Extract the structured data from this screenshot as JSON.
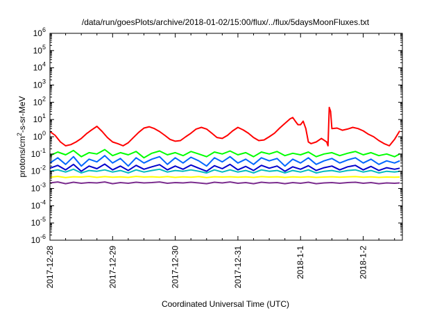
{
  "chart_data": {
    "type": "line",
    "title": "/data/run/goesPlots/archive/2018-01-02/15:00/flux/../flux/5daysMoonFluxes.txt",
    "xlabel": "Coordinated Universal Time (UTC)",
    "ylabel": {
      "pre": "protons/cm",
      "sup": "2",
      "post": "-s-sr-MeV"
    },
    "x_unit": "hours from first tick (2017-12-28 00:00 UTC)",
    "xlim": [
      0,
      135
    ],
    "ylim": [
      1e-06,
      1000000.0
    ],
    "yscale": "log",
    "grid": false,
    "legend": "none",
    "x_ticks": [
      {
        "hour": 0,
        "label": "2017-12-28"
      },
      {
        "hour": 24,
        "label": "2017-12-29"
      },
      {
        "hour": 48,
        "label": "2017-12-30"
      },
      {
        "hour": 72,
        "label": "2017-12-31"
      },
      {
        "hour": 96,
        "label": "2018-1-1"
      },
      {
        "hour": 120,
        "label": "2018-1-2"
      }
    ],
    "y_ticks": [
      {
        "value": 1e-06,
        "base": "10",
        "exp": "-6"
      },
      {
        "value": 1e-05,
        "base": "10",
        "exp": "-5"
      },
      {
        "value": 0.0001,
        "base": "10",
        "exp": "-4"
      },
      {
        "value": 0.001,
        "base": "10",
        "exp": "-3"
      },
      {
        "value": 0.01,
        "base": "10",
        "exp": "-2"
      },
      {
        "value": 0.1,
        "base": "10",
        "exp": "-1"
      },
      {
        "value": 1,
        "base": "10",
        "exp": "0"
      },
      {
        "value": 10,
        "base": "10",
        "exp": "1"
      },
      {
        "value": 100,
        "base": "10",
        "exp": "2"
      },
      {
        "value": 1000,
        "base": "10",
        "exp": "3"
      },
      {
        "value": 10000,
        "base": "10",
        "exp": "4"
      },
      {
        "value": 100000,
        "base": "10",
        "exp": "5"
      },
      {
        "value": 1000000,
        "base": "10",
        "exp": "6"
      }
    ],
    "series": [
      {
        "color": "#ff0000",
        "x": [
          0,
          2,
          4,
          6,
          8,
          10,
          12,
          14,
          16,
          18,
          20,
          22,
          24,
          26,
          28,
          30,
          32,
          34,
          36,
          38,
          40,
          42,
          44,
          46,
          48,
          50,
          52,
          54,
          56,
          58,
          60,
          62,
          64,
          66,
          68,
          70,
          72,
          74,
          76,
          78,
          80,
          82,
          84,
          86,
          88,
          90,
          92,
          93,
          94,
          95,
          96,
          97,
          98,
          99,
          100,
          102,
          104,
          106,
          106.5,
          107,
          107.5,
          108,
          110,
          112,
          114,
          116,
          118,
          120,
          122,
          124,
          126,
          128,
          130,
          132,
          134
        ],
        "y": [
          2.0,
          1.2,
          0.5,
          0.3,
          0.35,
          0.5,
          0.8,
          1.5,
          2.5,
          4.0,
          2.0,
          0.9,
          0.5,
          0.4,
          0.3,
          0.45,
          0.9,
          1.8,
          3.2,
          3.8,
          3.0,
          2.0,
          1.2,
          0.7,
          0.55,
          0.6,
          1.0,
          1.6,
          2.8,
          3.5,
          2.8,
          1.6,
          0.9,
          0.8,
          1.2,
          2.2,
          3.5,
          2.5,
          1.6,
          0.9,
          0.6,
          0.65,
          1.0,
          1.6,
          3.2,
          6.0,
          11,
          13,
          8,
          5,
          5,
          8,
          3,
          0.5,
          0.4,
          0.5,
          0.8,
          0.5,
          0.3,
          50,
          30,
          3.0,
          3.2,
          2.4,
          2.8,
          3.5,
          3.0,
          2.2,
          1.4,
          1.0,
          0.6,
          0.4,
          0.3,
          0.7,
          2.2
        ]
      },
      {
        "color": "#00ff00",
        "x": [
          0,
          3,
          6,
          9,
          12,
          15,
          18,
          21,
          24,
          27,
          30,
          33,
          36,
          39,
          42,
          45,
          48,
          51,
          54,
          57,
          60,
          63,
          66,
          69,
          72,
          75,
          78,
          81,
          84,
          87,
          90,
          93,
          96,
          99,
          102,
          105,
          108,
          111,
          114,
          117,
          120,
          123,
          126,
          129,
          132,
          134
        ],
        "y": [
          0.08,
          0.13,
          0.09,
          0.16,
          0.07,
          0.12,
          0.1,
          0.18,
          0.08,
          0.12,
          0.09,
          0.14,
          0.06,
          0.11,
          0.15,
          0.09,
          0.12,
          0.08,
          0.14,
          0.1,
          0.07,
          0.13,
          0.1,
          0.15,
          0.09,
          0.12,
          0.07,
          0.13,
          0.1,
          0.14,
          0.08,
          0.11,
          0.09,
          0.13,
          0.07,
          0.1,
          0.12,
          0.08,
          0.11,
          0.14,
          0.09,
          0.12,
          0.08,
          0.1,
          0.07,
          0.1
        ]
      },
      {
        "color": "#0066ff",
        "x": [
          0,
          3,
          6,
          9,
          12,
          15,
          18,
          21,
          24,
          27,
          30,
          33,
          36,
          39,
          42,
          45,
          48,
          51,
          54,
          57,
          60,
          63,
          66,
          69,
          72,
          75,
          78,
          81,
          84,
          87,
          90,
          93,
          96,
          99,
          102,
          105,
          108,
          111,
          114,
          117,
          120,
          123,
          126,
          129,
          132,
          134
        ],
        "y": [
          0.03,
          0.06,
          0.025,
          0.07,
          0.02,
          0.05,
          0.035,
          0.08,
          0.03,
          0.055,
          0.02,
          0.06,
          0.03,
          0.05,
          0.07,
          0.025,
          0.06,
          0.03,
          0.065,
          0.04,
          0.02,
          0.06,
          0.035,
          0.07,
          0.03,
          0.05,
          0.025,
          0.06,
          0.04,
          0.055,
          0.02,
          0.05,
          0.03,
          0.06,
          0.025,
          0.04,
          0.055,
          0.03,
          0.045,
          0.06,
          0.03,
          0.05,
          0.025,
          0.04,
          0.03,
          0.04
        ]
      },
      {
        "color": "#0000cc",
        "x": [
          0,
          3,
          6,
          9,
          12,
          15,
          18,
          21,
          24,
          27,
          30,
          33,
          36,
          39,
          42,
          45,
          48,
          51,
          54,
          57,
          60,
          63,
          66,
          69,
          72,
          75,
          78,
          81,
          84,
          87,
          90,
          93,
          96,
          99,
          102,
          105,
          108,
          111,
          114,
          117,
          120,
          123,
          126,
          129,
          132,
          134
        ],
        "y": [
          0.015,
          0.022,
          0.012,
          0.025,
          0.01,
          0.02,
          0.014,
          0.026,
          0.012,
          0.02,
          0.011,
          0.022,
          0.013,
          0.018,
          0.024,
          0.012,
          0.02,
          0.013,
          0.023,
          0.015,
          0.01,
          0.021,
          0.014,
          0.025,
          0.012,
          0.019,
          0.011,
          0.022,
          0.015,
          0.02,
          0.01,
          0.018,
          0.013,
          0.021,
          0.011,
          0.016,
          0.02,
          0.012,
          0.018,
          0.022,
          0.012,
          0.019,
          0.011,
          0.016,
          0.013,
          0.015
        ]
      },
      {
        "color": "#00bbbb",
        "x": [
          0,
          3,
          6,
          9,
          12,
          15,
          18,
          21,
          24,
          27,
          30,
          33,
          36,
          39,
          42,
          45,
          48,
          51,
          54,
          57,
          60,
          63,
          66,
          69,
          72,
          75,
          78,
          81,
          84,
          87,
          90,
          93,
          96,
          99,
          102,
          105,
          108,
          111,
          114,
          117,
          120,
          123,
          126,
          129,
          132,
          134
        ],
        "y": [
          0.01,
          0.012,
          0.009,
          0.013,
          0.008,
          0.011,
          0.01,
          0.012,
          0.009,
          0.011,
          0.008,
          0.012,
          0.009,
          0.011,
          0.013,
          0.009,
          0.011,
          0.01,
          0.012,
          0.01,
          0.008,
          0.012,
          0.009,
          0.012,
          0.009,
          0.011,
          0.008,
          0.012,
          0.01,
          0.011,
          0.008,
          0.011,
          0.009,
          0.012,
          0.008,
          0.01,
          0.011,
          0.009,
          0.011,
          0.012,
          0.009,
          0.011,
          0.008,
          0.01,
          0.009,
          0.01
        ]
      },
      {
        "color": "#ffff00",
        "x": [
          0,
          3,
          6,
          9,
          12,
          15,
          18,
          21,
          24,
          27,
          30,
          33,
          36,
          39,
          42,
          45,
          48,
          51,
          54,
          57,
          60,
          63,
          66,
          69,
          72,
          75,
          78,
          81,
          84,
          87,
          90,
          93,
          96,
          99,
          102,
          105,
          108,
          111,
          114,
          117,
          120,
          123,
          126,
          129,
          132,
          134
        ],
        "y": [
          0.0045,
          0.005,
          0.0043,
          0.0048,
          0.0046,
          0.005,
          0.0044,
          0.0049,
          0.0045,
          0.0047,
          0.0044,
          0.005,
          0.0046,
          0.0048,
          0.0045,
          0.0049,
          0.0044,
          0.0047,
          0.0045,
          0.0049,
          0.0043,
          0.0048,
          0.0046,
          0.0048,
          0.0045,
          0.0047,
          0.0044,
          0.0049,
          0.0046,
          0.0048,
          0.0044,
          0.0047,
          0.0045,
          0.0048,
          0.0044,
          0.0046,
          0.0048,
          0.0045,
          0.0047,
          0.0049,
          0.0045,
          0.0047,
          0.0044,
          0.0046,
          0.0045,
          0.0046
        ]
      },
      {
        "color": "#7b2d8e",
        "x": [
          0,
          3,
          6,
          9,
          12,
          15,
          18,
          21,
          24,
          27,
          30,
          33,
          36,
          39,
          42,
          45,
          48,
          51,
          54,
          57,
          60,
          63,
          66,
          69,
          72,
          75,
          78,
          81,
          84,
          87,
          90,
          93,
          96,
          99,
          102,
          105,
          108,
          111,
          114,
          117,
          120,
          123,
          126,
          129,
          132,
          134
        ],
        "y": [
          0.0021,
          0.0024,
          0.0019,
          0.0023,
          0.002,
          0.0022,
          0.0021,
          0.0024,
          0.0019,
          0.0022,
          0.002,
          0.0023,
          0.0021,
          0.0022,
          0.0024,
          0.002,
          0.0022,
          0.0021,
          0.0023,
          0.0021,
          0.0019,
          0.0023,
          0.0021,
          0.0024,
          0.002,
          0.0022,
          0.0019,
          0.0023,
          0.0021,
          0.0022,
          0.0019,
          0.0022,
          0.002,
          0.0023,
          0.0019,
          0.0021,
          0.0022,
          0.002,
          0.0022,
          0.0023,
          0.002,
          0.0022,
          0.0019,
          0.0021,
          0.002,
          0.0021
        ]
      }
    ]
  }
}
